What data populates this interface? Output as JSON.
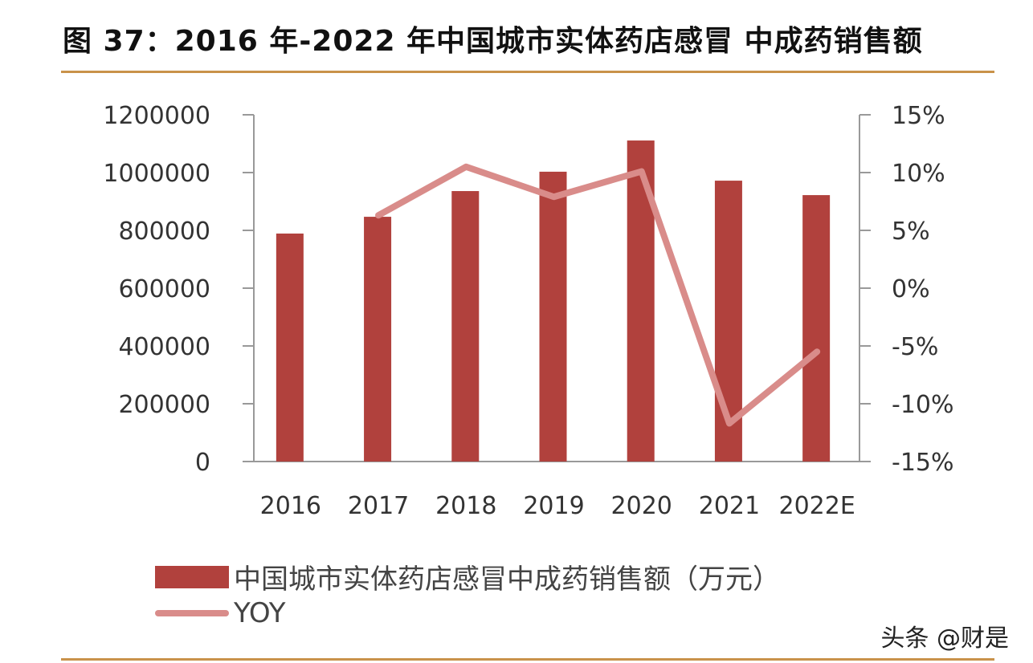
{
  "title": "图 37：2016 年-2022 年中国城市实体药店感冒 中成药销售额",
  "legend": {
    "bar_label": "中国城市实体药店感冒中成药销售额（万元）",
    "line_label": "YOY"
  },
  "watermark": "头条 @财是",
  "colors": {
    "bar": "#b1413d",
    "line": "#d98c8a",
    "rule": "#c9924a",
    "axis": "#999999"
  },
  "chart_data": {
    "type": "bar",
    "title": "图 37：2016 年-2022 年中国城市实体药店感冒 中成药销售额",
    "categories": [
      "2016",
      "2017",
      "2018",
      "2019",
      "2020",
      "2021",
      "2022E"
    ],
    "series": [
      {
        "name": "中国城市实体药店感冒中成药销售额（万元）",
        "type": "bar",
        "axis": "left",
        "values": [
          789000,
          847000,
          936000,
          1003000,
          1111000,
          972000,
          922000
        ]
      },
      {
        "name": "YOY",
        "type": "line",
        "axis": "right",
        "values": [
          null,
          6.3,
          10.5,
          7.9,
          10.1,
          -11.7,
          -5.5
        ]
      }
    ],
    "left_axis": {
      "ylim": [
        0,
        1200000
      ],
      "ticks": [
        "0",
        "200000",
        "400000",
        "600000",
        "800000",
        "1000000",
        "1200000"
      ]
    },
    "right_axis": {
      "ylim": [
        -15,
        15
      ],
      "ticks": [
        "-15%",
        "-10%",
        "-5%",
        "0%",
        "5%",
        "10%",
        "15%"
      ]
    },
    "xlabel": "",
    "ylabel": "",
    "grid": false,
    "legend_position": "bottom-left"
  }
}
